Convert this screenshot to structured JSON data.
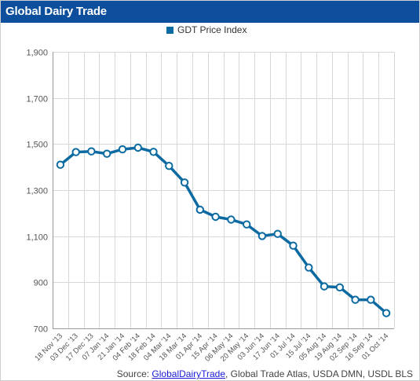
{
  "header": {
    "title": "Global Dairy Trade"
  },
  "source": {
    "prefix": "Source: ",
    "link_text": "GlobalDairyTrade",
    "suffix": ", Global Trade Atlas, USDA DMN, USDL BLS"
  },
  "colors": {
    "header_bg": "#0d4f9c",
    "series": "#0a6aa1",
    "grid": "#d8d8d8"
  },
  "chart_data": {
    "type": "line",
    "title": "",
    "xlabel": "",
    "ylabel": "",
    "legend": {
      "position": "top-center",
      "entries": [
        "GDT Price Index"
      ]
    },
    "grid": true,
    "ylim": [
      700,
      1900
    ],
    "yticks": [
      700,
      900,
      1100,
      1300,
      1500,
      1700,
      1900
    ],
    "ytick_labels": [
      "700",
      "900",
      "1,100",
      "1,300",
      "1,500",
      "1,700",
      "1,900"
    ],
    "categories": [
      "18 Nov '13",
      "03 Dec '13",
      "17 Dec '13",
      "07 Jan '14",
      "21 Jan '14",
      "04 Feb '14",
      "18 Feb '14",
      "04 Mar '14",
      "18 Mar '14",
      "01 Apr '14",
      "15 Apr '14",
      "06 May '14",
      "20 May '14",
      "03 Jun '14",
      "17 Jun '14",
      "01 Jul '14",
      "15 Jul '14",
      "05 Aug '14",
      "19 Aug '14",
      "02 Sep '14",
      "16 Sep '14",
      "01 Oct '14"
    ],
    "series": [
      {
        "name": "GDT Price Index",
        "values": [
          1410,
          1465,
          1468,
          1458,
          1477,
          1484,
          1466,
          1405,
          1333,
          1215,
          1184,
          1172,
          1151,
          1101,
          1110,
          1059,
          964,
          882,
          878,
          824,
          824,
          766
        ]
      }
    ]
  }
}
